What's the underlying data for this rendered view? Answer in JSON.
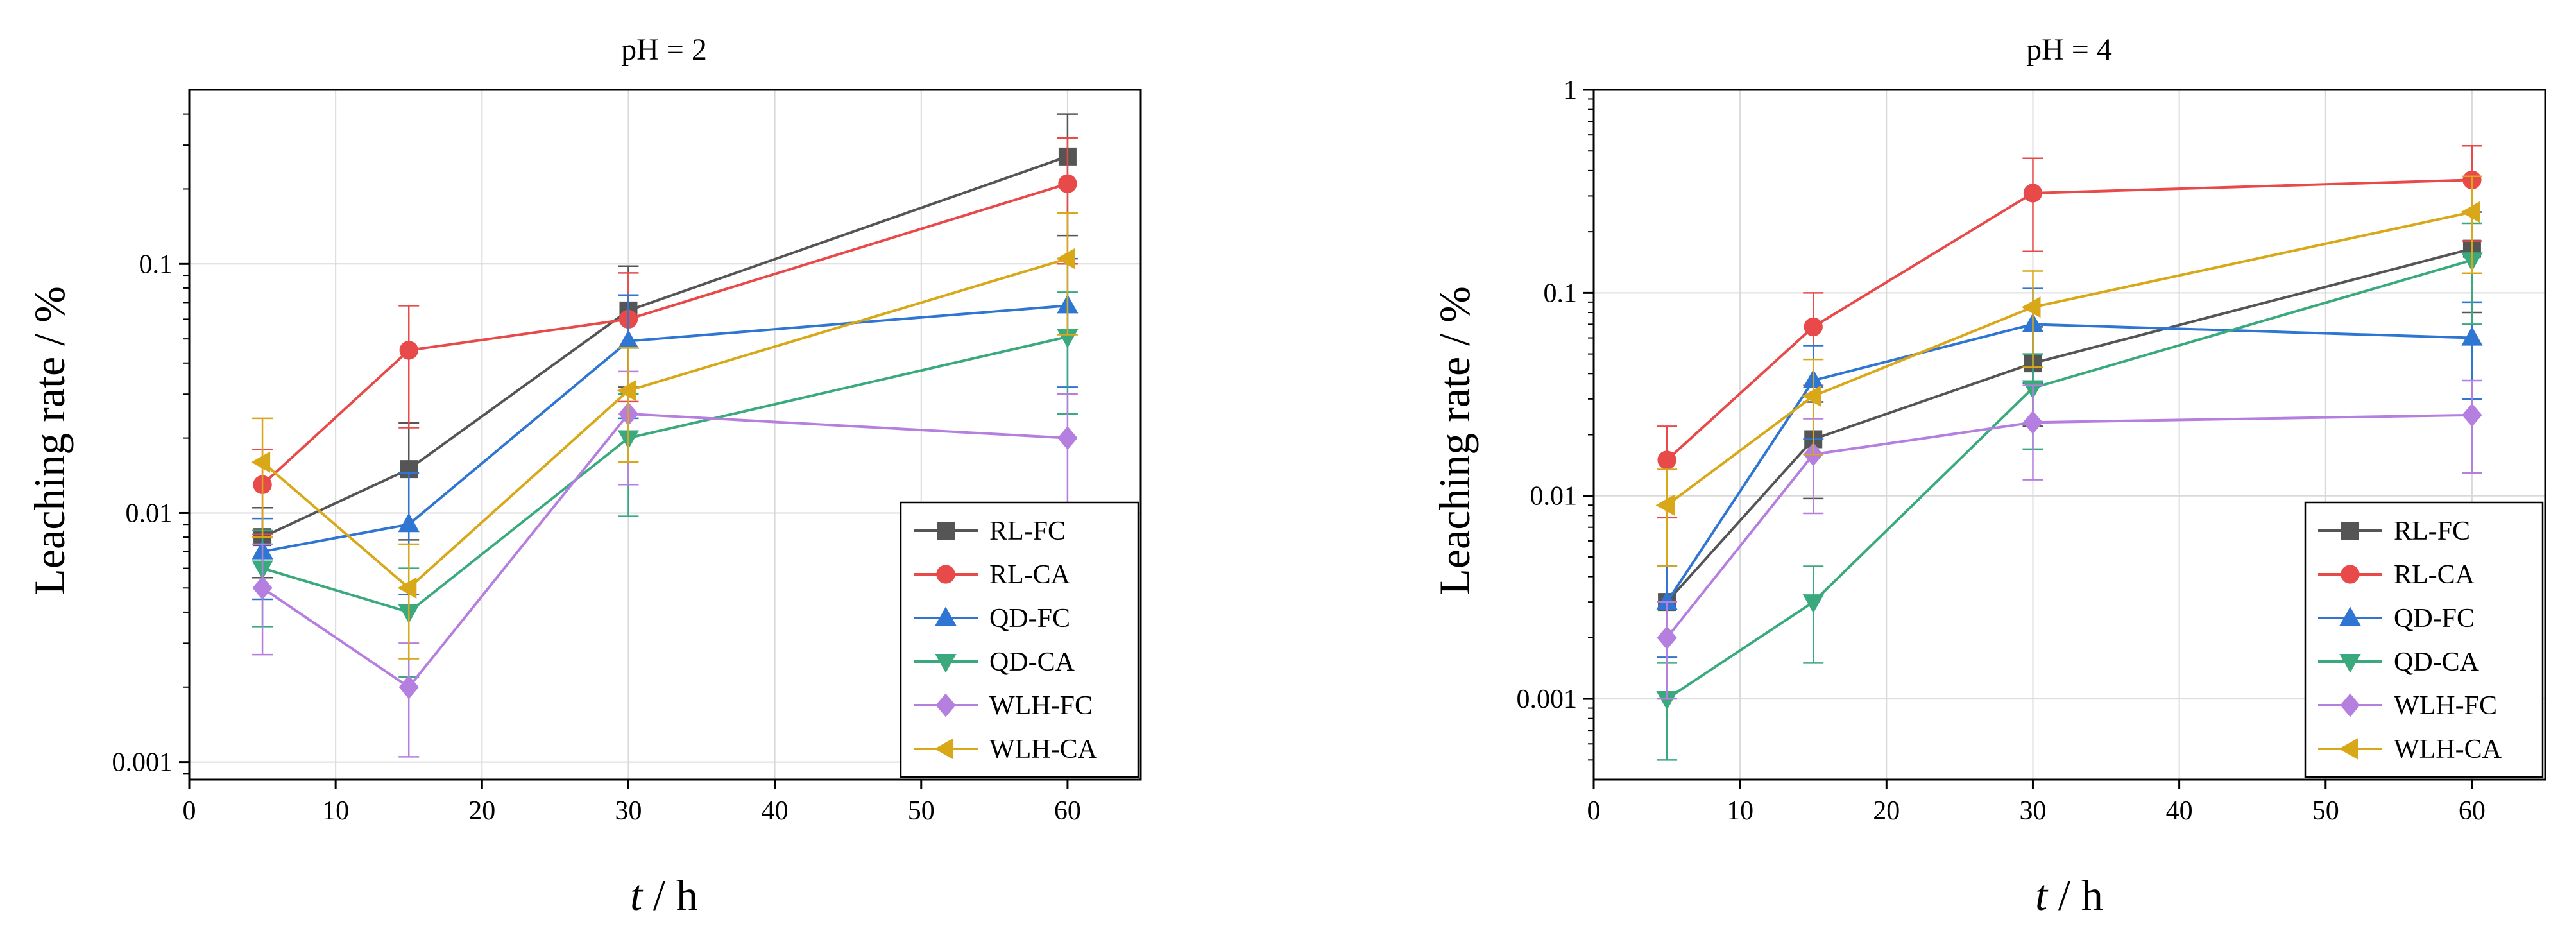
{
  "chart_data": [
    {
      "type": "line",
      "title": "pH = 2",
      "xlabel_italic": "t",
      "xlabel_rest": " / h",
      "ylabel": "Leaching rate / %",
      "xlim": [
        0,
        65
      ],
      "ylim": [
        0.00085,
        0.5
      ],
      "yscale": "log",
      "grid": true,
      "legend_position": "bottom-right",
      "x_ticks": [
        0,
        10,
        20,
        30,
        40,
        50,
        60
      ],
      "y_ticks": [
        0.001,
        0.01,
        0.1
      ],
      "y_tick_labels": [
        "0.001",
        "0.01",
        "0.1"
      ],
      "x": [
        5,
        15,
        30,
        60
      ],
      "series": [
        {
          "name": "RL-FC",
          "color": "#555555",
          "marker": "square",
          "values": [
            0.008,
            0.015,
            0.065,
            0.27
          ],
          "err_lo": [
            0.0055,
            0.0078,
            0.032,
            0.13
          ],
          "err_hi": [
            0.0105,
            0.023,
            0.098,
            0.4
          ]
        },
        {
          "name": "RL-CA",
          "color": "#e84a4a",
          "marker": "circle",
          "values": [
            0.013,
            0.045,
            0.06,
            0.21
          ],
          "err_lo": [
            0.0082,
            0.022,
            0.028,
            0.1
          ],
          "err_hi": [
            0.018,
            0.068,
            0.092,
            0.32
          ]
        },
        {
          "name": "QD-FC",
          "color": "#2f75d2",
          "marker": "triangle-up",
          "values": [
            0.007,
            0.009,
            0.049,
            0.068
          ],
          "err_lo": [
            0.0045,
            0.0047,
            0.024,
            0.032
          ],
          "err_hi": [
            0.0095,
            0.0145,
            0.075,
            0.105
          ]
        },
        {
          "name": "QD-CA",
          "color": "#3aaa7e",
          "marker": "triangle-down",
          "values": [
            0.006,
            0.004,
            0.02,
            0.051
          ],
          "err_lo": [
            0.0035,
            0.0022,
            0.0097,
            0.025
          ],
          "err_hi": [
            0.0085,
            0.006,
            0.03,
            0.077
          ]
        },
        {
          "name": "WLH-FC",
          "color": "#b57fe0",
          "marker": "diamond",
          "values": [
            0.005,
            0.002,
            0.025,
            0.02
          ],
          "err_lo": [
            0.0027,
            0.00105,
            0.013,
            0.0105
          ],
          "err_hi": [
            0.0075,
            0.003,
            0.037,
            0.03
          ]
        },
        {
          "name": "WLH-CA",
          "color": "#d8a818",
          "marker": "triangle-left",
          "values": [
            0.016,
            0.005,
            0.031,
            0.105
          ],
          "err_lo": [
            0.008,
            0.0026,
            0.016,
            0.052
          ],
          "err_hi": [
            0.024,
            0.0075,
            0.046,
            0.16
          ]
        }
      ]
    },
    {
      "type": "line",
      "title": "pH = 4",
      "xlabel_italic": "t",
      "xlabel_rest": " / h",
      "ylabel": "Leaching rate / %",
      "xlim": [
        0,
        65
      ],
      "ylim": [
        0.0004,
        1.0
      ],
      "yscale": "log",
      "grid": true,
      "legend_position": "bottom-right",
      "x_ticks": [
        0,
        10,
        20,
        30,
        40,
        50,
        60
      ],
      "y_ticks": [
        0.001,
        0.01,
        0.1,
        1
      ],
      "y_tick_labels": [
        "0.001",
        "0.01",
        "0.1",
        "1"
      ],
      "x": [
        5,
        15,
        30,
        60
      ],
      "series": [
        {
          "name": "RL-FC",
          "color": "#555555",
          "marker": "square",
          "values": [
            0.003,
            0.019,
            0.045,
            0.165
          ],
          "err_lo": [
            0.0016,
            0.0097,
            0.022,
            0.08
          ],
          "err_hi": [
            0.0045,
            0.029,
            0.068,
            0.25
          ]
        },
        {
          "name": "RL-CA",
          "color": "#e84a4a",
          "marker": "circle",
          "values": [
            0.015,
            0.068,
            0.31,
            0.36
          ],
          "err_lo": [
            0.0078,
            0.035,
            0.16,
            0.18
          ],
          "err_hi": [
            0.022,
            0.1,
            0.46,
            0.53
          ]
        },
        {
          "name": "QD-FC",
          "color": "#2f75d2",
          "marker": "triangle-up",
          "values": [
            0.003,
            0.037,
            0.07,
            0.06
          ],
          "err_lo": [
            0.0016,
            0.019,
            0.036,
            0.03
          ],
          "err_hi": [
            0.0045,
            0.055,
            0.105,
            0.09
          ]
        },
        {
          "name": "QD-CA",
          "color": "#3aaa7e",
          "marker": "triangle-down",
          "values": [
            0.001,
            0.003,
            0.034,
            0.145
          ],
          "err_lo": [
            0.0005,
            0.0015,
            0.017,
            0.07
          ],
          "err_hi": [
            0.0015,
            0.0045,
            0.05,
            0.22
          ]
        },
        {
          "name": "WLH-FC",
          "color": "#b57fe0",
          "marker": "diamond",
          "values": [
            0.002,
            0.016,
            0.023,
            0.025
          ],
          "err_lo": [
            0.001,
            0.0082,
            0.012,
            0.013
          ],
          "err_hi": [
            0.003,
            0.024,
            0.035,
            0.037
          ]
        },
        {
          "name": "WLH-CA",
          "color": "#d8a818",
          "marker": "triangle-left",
          "values": [
            0.009,
            0.031,
            0.085,
            0.25
          ],
          "err_lo": [
            0.0045,
            0.016,
            0.043,
            0.125
          ],
          "err_hi": [
            0.0135,
            0.047,
            0.128,
            0.375
          ]
        }
      ]
    }
  ]
}
